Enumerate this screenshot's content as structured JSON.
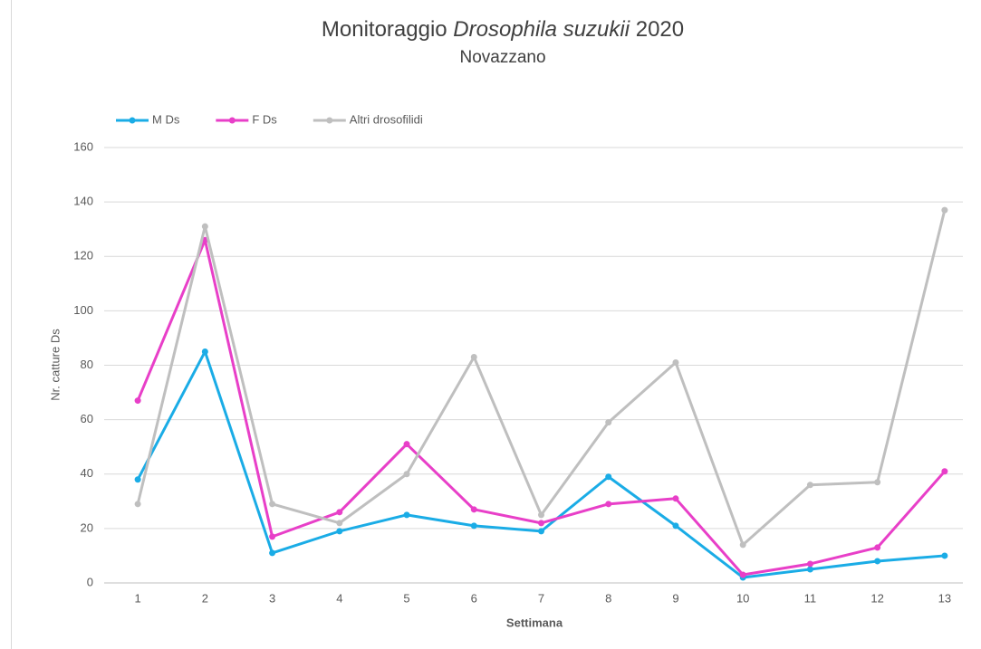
{
  "chart_data": {
    "type": "line",
    "title": [
      "Monitoraggio",
      "Drosophila suzukii",
      "2020"
    ],
    "subtitle": "Novazzano",
    "x_label": "Settimana",
    "y_label": "Nr. catture Ds",
    "categories": [
      "1",
      "2",
      "3",
      "4",
      "5",
      "6",
      "7",
      "8",
      "9",
      "10",
      "11",
      "12",
      "13"
    ],
    "series": [
      {
        "name": "M Ds",
        "color": "#1aace6",
        "values": [
          38,
          85,
          11,
          19,
          25,
          21,
          19,
          39,
          21,
          2,
          5,
          8,
          10
        ]
      },
      {
        "name": "F Ds",
        "color": "#e83fc8",
        "values": [
          67,
          126,
          17,
          26,
          51,
          27,
          22,
          29,
          31,
          3,
          7,
          13,
          41
        ]
      },
      {
        "name": "Altri drosofilidi",
        "color": "#bfbfbf",
        "values": [
          29,
          131,
          29,
          22,
          40,
          83,
          25,
          59,
          81,
          14,
          36,
          37,
          137
        ]
      }
    ],
    "ylim": [
      0,
      160
    ],
    "yticks": [
      0,
      20,
      40,
      60,
      80,
      100,
      120,
      140,
      160
    ],
    "grid": true,
    "legend": "top-left"
  }
}
